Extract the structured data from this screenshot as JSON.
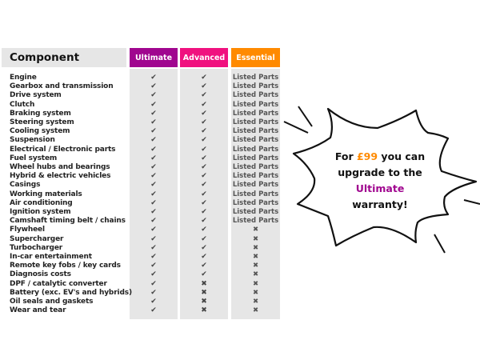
{
  "header": {
    "component": "Component",
    "ultimate": "Ultimate",
    "advanced": "Advanced",
    "essential": "Essential"
  },
  "colors": {
    "ultimate": "#a0068f",
    "advanced": "#f0117f",
    "essential": "#ff8a00",
    "body": "#e6e6e6"
  },
  "icons": {
    "check": "check-icon",
    "cross": "cross-icon"
  },
  "rows": [
    {
      "name": "Engine",
      "values": [
        "check",
        "check",
        "Listed Parts"
      ]
    },
    {
      "name": "Gearbox and transmission",
      "values": [
        "check",
        "check",
        "Listed Parts"
      ]
    },
    {
      "name": "Drive system",
      "values": [
        "check",
        "check",
        "Listed Parts"
      ]
    },
    {
      "name": "Clutch",
      "values": [
        "check",
        "check",
        "Listed Parts"
      ]
    },
    {
      "name": "Braking system",
      "values": [
        "check",
        "check",
        "Listed Parts"
      ]
    },
    {
      "name": "Steering system",
      "values": [
        "check",
        "check",
        "Listed Parts"
      ]
    },
    {
      "name": "Cooling system",
      "values": [
        "check",
        "check",
        "Listed Parts"
      ]
    },
    {
      "name": "Suspension",
      "values": [
        "check",
        "check",
        "Listed Parts"
      ]
    },
    {
      "name": "Electrical / Electronic parts",
      "values": [
        "check",
        "check",
        "Listed Parts"
      ]
    },
    {
      "name": "Fuel system",
      "values": [
        "check",
        "check",
        "Listed Parts"
      ]
    },
    {
      "name": "Wheel hubs and bearings",
      "values": [
        "check",
        "check",
        "Listed Parts"
      ]
    },
    {
      "name": "Hybrid & electric vehicles",
      "values": [
        "check",
        "check",
        "Listed Parts"
      ]
    },
    {
      "name": "Casings",
      "values": [
        "check",
        "check",
        "Listed Parts"
      ]
    },
    {
      "name": "Working materials",
      "values": [
        "check",
        "check",
        "Listed Parts"
      ]
    },
    {
      "name": "Air conditioning",
      "values": [
        "check",
        "check",
        "Listed Parts"
      ]
    },
    {
      "name": "Ignition system",
      "values": [
        "check",
        "check",
        "Listed Parts"
      ]
    },
    {
      "name": "Camshaft timing belt / chains",
      "values": [
        "check",
        "check",
        "Listed Parts"
      ]
    },
    {
      "name": "Flywheel",
      "values": [
        "check",
        "check",
        "cross"
      ]
    },
    {
      "name": "Supercharger",
      "values": [
        "check",
        "check",
        "cross"
      ]
    },
    {
      "name": "Turbocharger",
      "values": [
        "check",
        "check",
        "cross"
      ]
    },
    {
      "name": "In-car entertainment",
      "values": [
        "check",
        "check",
        "cross"
      ]
    },
    {
      "name": "Remote key fobs / key cards",
      "values": [
        "check",
        "check",
        "cross"
      ]
    },
    {
      "name": "Diagnosis costs",
      "values": [
        "check",
        "check",
        "cross"
      ]
    },
    {
      "name": "DPF / catalytic converter",
      "values": [
        "check",
        "cross",
        "cross"
      ]
    },
    {
      "name": "Battery (exc. EV's and hybrids)",
      "values": [
        "check",
        "cross",
        "cross"
      ]
    },
    {
      "name": "Oil seals and gaskets",
      "values": [
        "check",
        "cross",
        "cross"
      ]
    },
    {
      "name": "Wear and tear",
      "values": [
        "check",
        "cross",
        "cross"
      ]
    }
  ],
  "promo": {
    "line1_pre": "For ",
    "price": "£99",
    "line1_post": " you can",
    "line2": "upgrade to the",
    "line3": "Ultimate",
    "line4": "warranty!",
    "price_color": "#ff8a00",
    "ultimate_color": "#a0068f"
  }
}
